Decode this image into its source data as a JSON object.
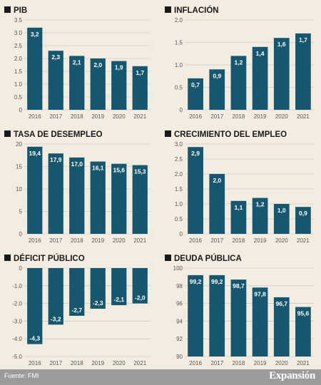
{
  "source": "Fuente: FMI",
  "brand": "Expansión",
  "colors": {
    "bar": "#16576f",
    "background": "#f3ede1",
    "footer": "#9b9b9b",
    "grid": "#bcbcbc",
    "text": "#555555",
    "title": "#1a1a1a"
  },
  "chart_data": [
    {
      "type": "bar",
      "title": "PIB",
      "categories": [
        "2016",
        "2017",
        "2018",
        "2019",
        "2020",
        "2021"
      ],
      "values": [
        3.2,
        2.3,
        2.1,
        2.0,
        1.9,
        1.7
      ],
      "labels": [
        "3,2",
        "2,3",
        "2,1",
        "2,0",
        "1,9",
        "1,7"
      ],
      "ylim": [
        0,
        3.5
      ],
      "yticks": [
        0,
        0.5,
        1,
        1.5,
        2,
        2.5,
        3,
        3.5
      ],
      "ytick_labels": [
        "0",
        "0.5",
        "1.0",
        "1.5",
        "2.0",
        "2.5",
        "3.0",
        "3.5"
      ],
      "grid": true
    },
    {
      "type": "bar",
      "title": "INFLACIÓN",
      "categories": [
        "2016",
        "2017",
        "2018",
        "2019",
        "2020",
        "2021"
      ],
      "values": [
        0.7,
        0.9,
        1.2,
        1.4,
        1.6,
        1.7
      ],
      "labels": [
        "0,7",
        "0,9",
        "1,2",
        "1,4",
        "1,6",
        "1,7"
      ],
      "ylim": [
        0,
        2
      ],
      "yticks": [
        0,
        0.5,
        1,
        1.5,
        2
      ],
      "ytick_labels": [
        "0",
        "0.5",
        "1.0",
        "1.5",
        "2.0"
      ],
      "grid": true
    },
    {
      "type": "bar",
      "title": "TASA DE DESEMPLEO",
      "categories": [
        "2016",
        "2017",
        "2018",
        "2019",
        "2020",
        "2021"
      ],
      "values": [
        19.4,
        17.9,
        17.0,
        16.1,
        15.6,
        15.3
      ],
      "labels": [
        "19,4",
        "17,9",
        "17,0",
        "16,1",
        "15,6",
        "15,3"
      ],
      "ylim": [
        0,
        20
      ],
      "yticks": [
        0,
        5,
        10,
        15,
        20
      ],
      "ytick_labels": [
        "0",
        "5",
        "10",
        "15",
        "20"
      ],
      "grid": true
    },
    {
      "type": "bar",
      "title": "CRECIMIENTO DEL EMPLEO",
      "categories": [
        "2016",
        "2017",
        "2018",
        "2019",
        "2020",
        "2021"
      ],
      "values": [
        2.9,
        2.0,
        1.1,
        1.2,
        1.0,
        0.9
      ],
      "labels": [
        "2,9",
        "2,0",
        "1,1",
        "1,2",
        "1,0",
        "0,9"
      ],
      "ylim": [
        0,
        3
      ],
      "yticks": [
        0,
        0.5,
        1,
        1.5,
        2,
        2.5,
        3
      ],
      "ytick_labels": [
        "0",
        "0.5",
        "1.0",
        "1.5",
        "2.0",
        "2.5",
        "3.0"
      ],
      "grid": true
    },
    {
      "type": "bar",
      "title": "DÉFICIT PÚBLICO",
      "categories": [
        "2016",
        "2017",
        "2018",
        "2019",
        "2020",
        "2021"
      ],
      "values": [
        -4.3,
        -3.2,
        -2.7,
        -2.3,
        -2.1,
        -2.0
      ],
      "labels": [
        "-4,3",
        "-3,2",
        "-2,7",
        "-2,3",
        "-2,1",
        "-2,0"
      ],
      "ylim": [
        -5,
        0
      ],
      "yticks": [
        0,
        -1,
        -2,
        -3,
        -4,
        -5
      ],
      "ytick_labels": [
        "0",
        "-1.0",
        "-2.0",
        "-3.0",
        "-4.0",
        "-5.0"
      ],
      "grid": true
    },
    {
      "type": "bar",
      "title": "DEUDA PÚBLICA",
      "categories": [
        "2016",
        "2017",
        "2018",
        "2019",
        "2020",
        "2021"
      ],
      "values": [
        99.2,
        99.2,
        98.7,
        97.8,
        96.7,
        95.6
      ],
      "labels": [
        "99,2",
        "99,2",
        "98,7",
        "97,8",
        "96,7",
        "95,6"
      ],
      "ylim": [
        90,
        100
      ],
      "yticks": [
        90,
        92,
        94,
        96,
        98,
        100
      ],
      "ytick_labels": [
        "90",
        "92",
        "94",
        "96",
        "98",
        "100"
      ],
      "grid": true
    }
  ]
}
